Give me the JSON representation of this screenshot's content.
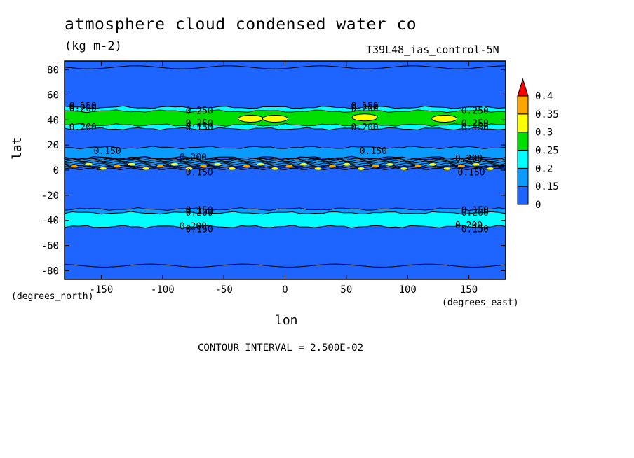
{
  "title": "atmosphere cloud condensed water co",
  "units": "(kg m-2)",
  "run_label": "T39L48_ias_control-5N",
  "x_axis_label": "lon",
  "y_axis_label": "lat",
  "x_units_label": "(degrees_east)",
  "y_units_label": "(degrees_north)",
  "contour_interval_text": "CONTOUR INTERVAL = 2.500E-02",
  "chart_data": {
    "type": "heatmap",
    "title": "atmosphere cloud condensed water co",
    "xlabel": "lon",
    "ylabel": "lat",
    "xlim": [
      -180,
      180
    ],
    "ylim": [
      -87,
      87
    ],
    "x_ticks": [
      "-150",
      "-100",
      "-50",
      "0",
      "50",
      "100",
      "150"
    ],
    "x_tick_values": [
      -150,
      -100,
      -50,
      0,
      50,
      100,
      150
    ],
    "y_ticks": [
      "80",
      "60",
      "40",
      "20",
      "0",
      "-20",
      "-40",
      "-60",
      "-80"
    ],
    "y_tick_values": [
      80,
      60,
      40,
      20,
      0,
      -20,
      -40,
      -60,
      -80
    ],
    "colorbar": {
      "levels": [
        "0",
        "0.15",
        "0.2",
        "0.25",
        "0.3",
        "0.35",
        "0.4"
      ],
      "colors": [
        "#1e64ff",
        "#0a9bff",
        "#00ffff",
        "#00e000",
        "#ffff00",
        "#ffa500",
        "#ff0000"
      ]
    },
    "bands": [
      {
        "lat_min": 33,
        "lat_max": 50,
        "level": "0.2"
      },
      {
        "lat_min": 36,
        "lat_max": 47,
        "level": "0.25"
      },
      {
        "lat_min": 10,
        "lat_max": 18,
        "level": "0.15"
      },
      {
        "lat_min": 3,
        "lat_max": 9,
        "level": "0.15"
      },
      {
        "lat_min": -36,
        "lat_max": -31,
        "level": "0.15"
      },
      {
        "lat_min": -45,
        "lat_max": -34,
        "level": "0.2"
      }
    ],
    "patches": [
      {
        "lon": -28,
        "lat": 41,
        "level": "0.3"
      },
      {
        "lon": -8,
        "lat": 41,
        "level": "0.3"
      },
      {
        "lon": 65,
        "lat": 42,
        "level": "0.3"
      },
      {
        "lon": 130,
        "lat": 41,
        "level": "0.3"
      }
    ],
    "contour_labels": [
      {
        "text": "0.150",
        "lon": -165,
        "lat": 51
      },
      {
        "text": "0.200",
        "lon": -165,
        "lat": 49
      },
      {
        "text": "0.250",
        "lon": -70,
        "lat": 47
      },
      {
        "text": "0.250",
        "lon": -70,
        "lat": 37
      },
      {
        "text": "0.200",
        "lon": -165,
        "lat": 34
      },
      {
        "text": "0.150",
        "lon": -70,
        "lat": 34
      },
      {
        "text": "0.150",
        "lon": 65,
        "lat": 51
      },
      {
        "text": "0.200",
        "lon": 65,
        "lat": 49
      },
      {
        "text": "0.250",
        "lon": 155,
        "lat": 47
      },
      {
        "text": "0.250",
        "lon": 155,
        "lat": 37
      },
      {
        "text": "0.200",
        "lon": 65,
        "lat": 34
      },
      {
        "text": "0.150",
        "lon": 155,
        "lat": 34
      },
      {
        "text": "0.150",
        "lon": -145,
        "lat": 15
      },
      {
        "text": "0.150",
        "lon": 72,
        "lat": 15
      },
      {
        "text": "0.200",
        "lon": -75,
        "lat": 10
      },
      {
        "text": "0.150",
        "lon": -70,
        "lat": -2
      },
      {
        "text": "0.150",
        "lon": 152,
        "lat": -2
      },
      {
        "text": "0.200",
        "lon": 150,
        "lat": 9
      },
      {
        "text": "0.150",
        "lon": -70,
        "lat": -32
      },
      {
        "text": "0.200",
        "lon": -70,
        "lat": -34
      },
      {
        "text": "0.150",
        "lon": 155,
        "lat": -32
      },
      {
        "text": "0.200",
        "lon": 155,
        "lat": -34
      },
      {
        "text": "0.200",
        "lon": -75,
        "lat": -45
      },
      {
        "text": "0.150",
        "lon": -70,
        "lat": -47
      },
      {
        "text": "0.200",
        "lon": 150,
        "lat": -44
      },
      {
        "text": "0.150",
        "lon": 155,
        "lat": -47
      }
    ]
  }
}
